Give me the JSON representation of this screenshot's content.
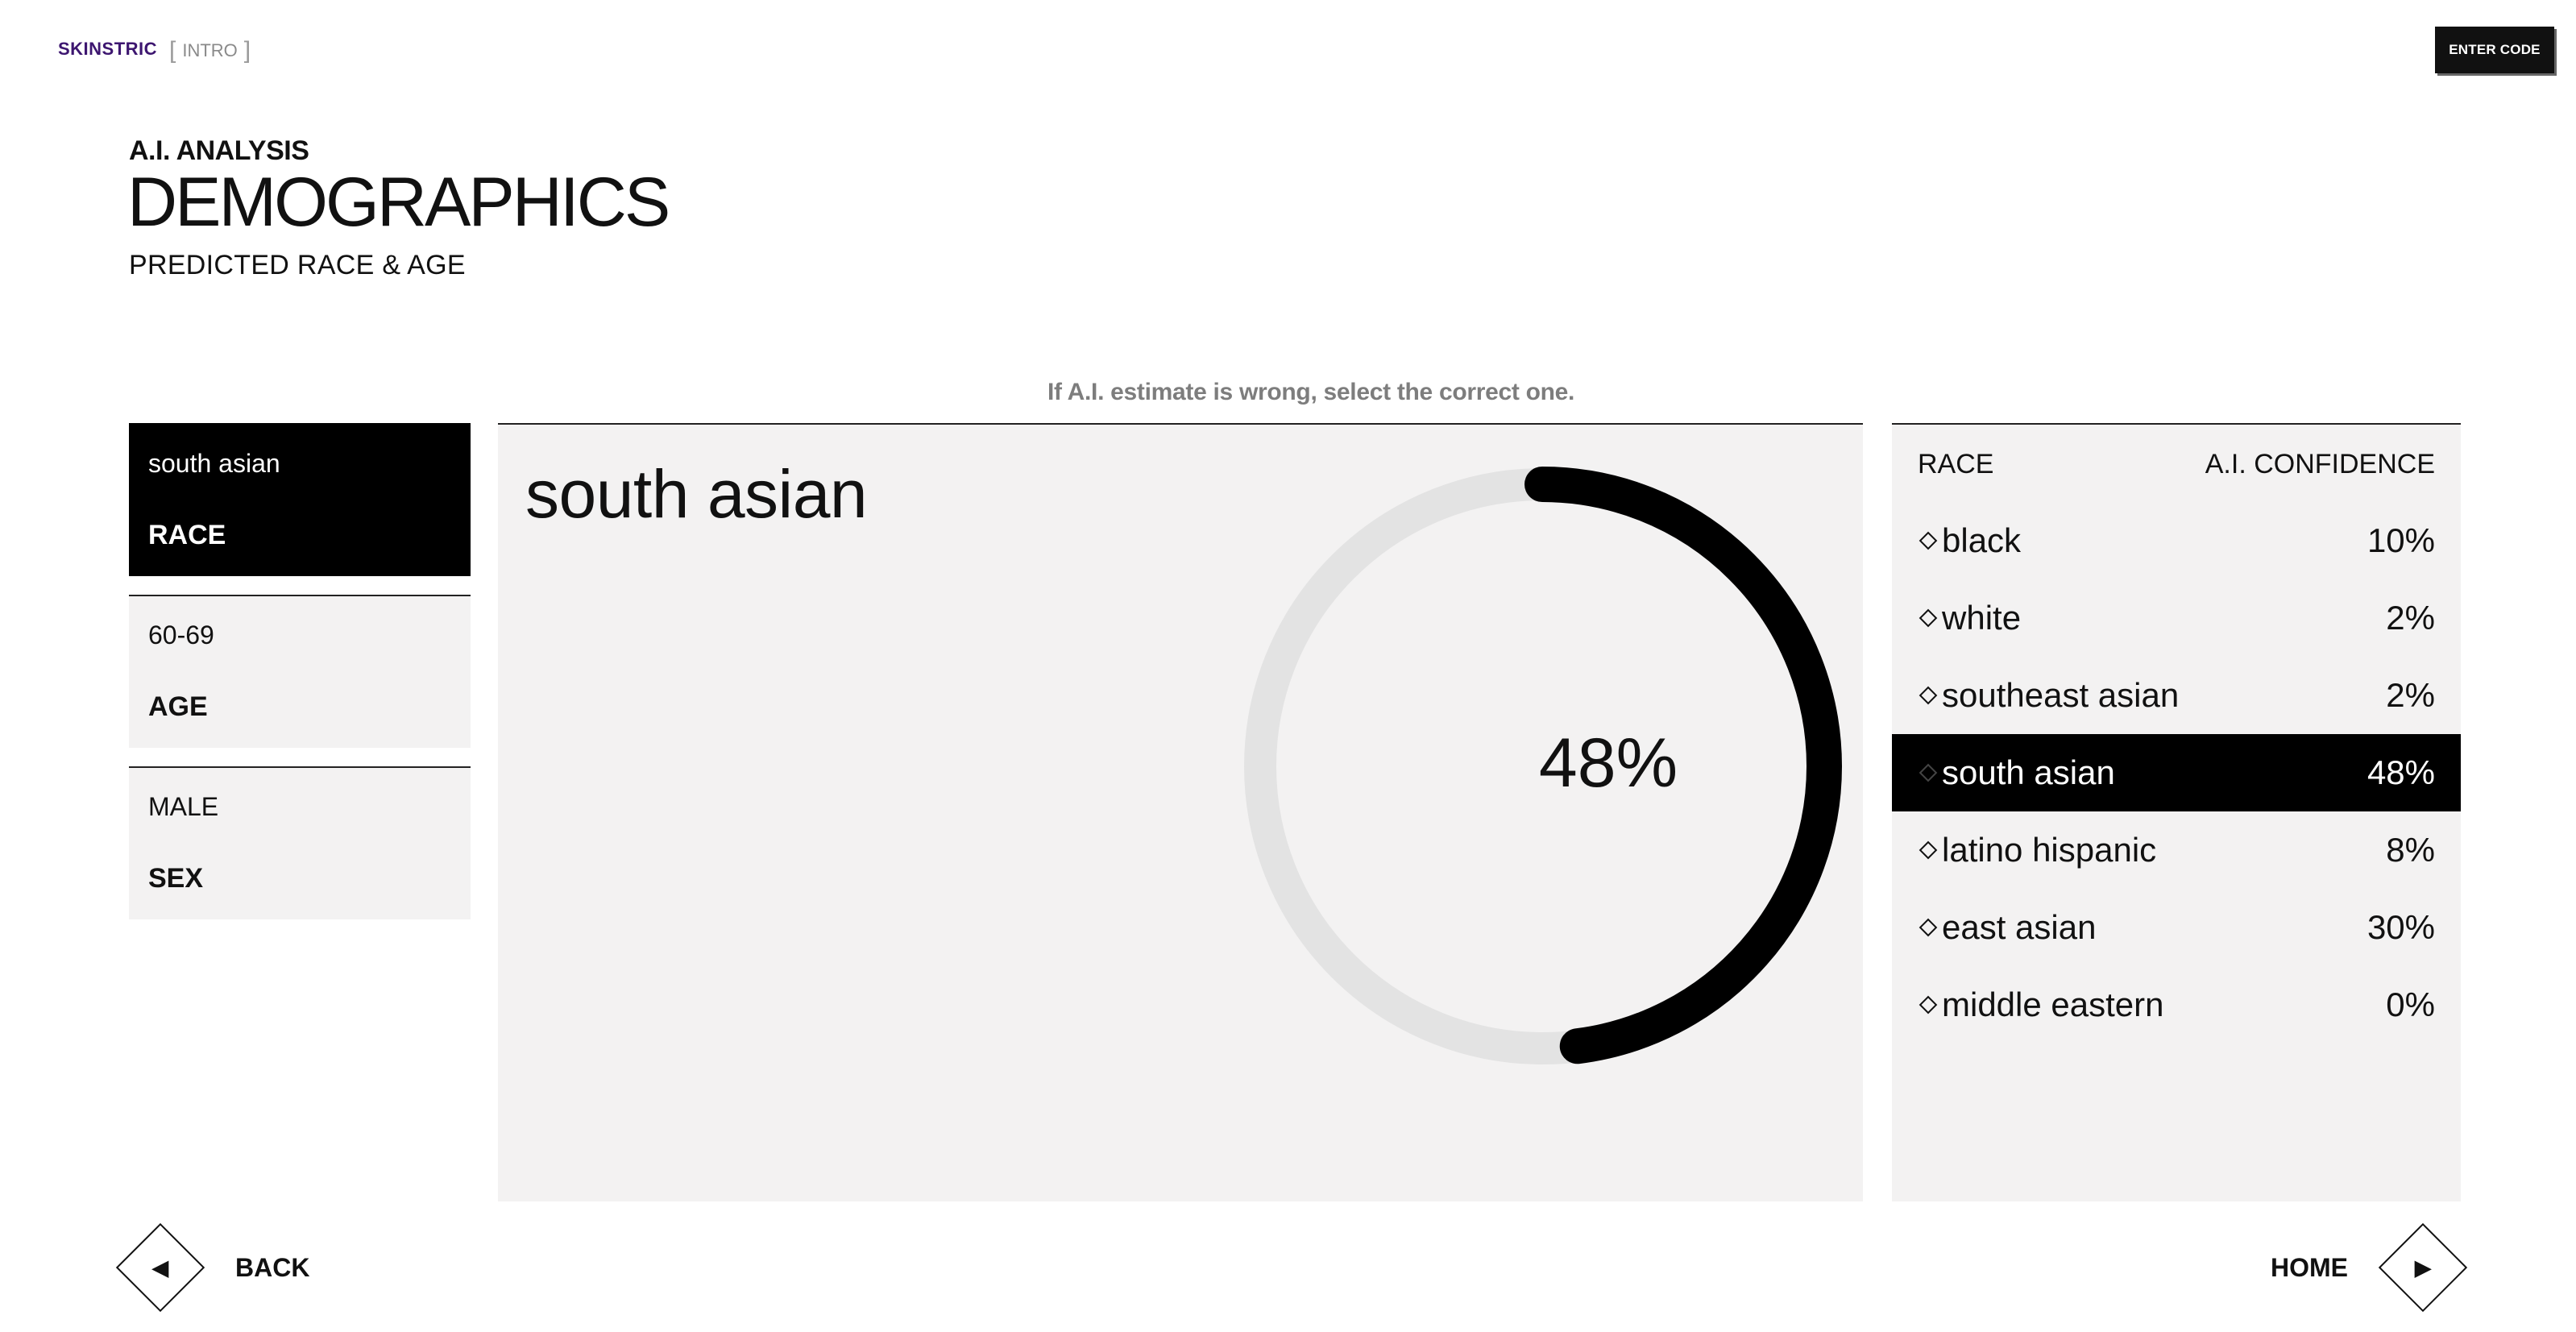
{
  "header": {
    "brand": "SKINSTRIC",
    "crumb": "INTRO",
    "crumb_open": "[",
    "crumb_close": "]",
    "enter_code": "ENTER CODE"
  },
  "hero": {
    "kicker": "A.I. ANALYSIS",
    "title": "DEMOGRAPHICS",
    "subtitle": "PREDICTED RACE & AGE"
  },
  "hint": "If A.I. estimate is wrong, select the correct one.",
  "cards": [
    {
      "value": "south asian",
      "label": "RACE",
      "active": true
    },
    {
      "value": "60-69",
      "label": "AGE",
      "active": false
    },
    {
      "value": "MALE",
      "label": "SEX",
      "active": false
    }
  ],
  "center": {
    "title": "south asian",
    "percent_text": "48%",
    "percent": 48
  },
  "confidence": {
    "head_left": "RACE",
    "head_right": "A.I. CONFIDENCE",
    "rows": [
      {
        "name": "black",
        "value": "10%",
        "selected": false
      },
      {
        "name": "white",
        "value": "2%",
        "selected": false
      },
      {
        "name": "southeast asian",
        "value": "2%",
        "selected": false
      },
      {
        "name": "south asian",
        "value": "48%",
        "selected": true
      },
      {
        "name": "latino hispanic",
        "value": "8%",
        "selected": false
      },
      {
        "name": "east asian",
        "value": "30%",
        "selected": false
      },
      {
        "name": "middle eastern",
        "value": "0%",
        "selected": false
      }
    ]
  },
  "nav": {
    "back": "BACK",
    "home": "HOME",
    "back_icon": "triangle-left-icon",
    "home_icon": "triangle-right-icon"
  },
  "colors": {
    "brand": "#3d1670",
    "panel_bg": "#f3f2f2",
    "ring_track": "#e3e3e3",
    "ring_fill": "#000000"
  }
}
